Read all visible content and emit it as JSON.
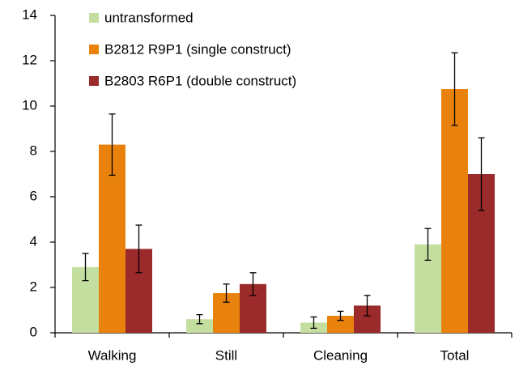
{
  "chart_data": {
    "type": "bar",
    "categories": [
      "Walking",
      "Still",
      "Cleaning",
      "Total"
    ],
    "series": [
      {
        "name": "untransformed",
        "color": "#c4dea0",
        "values": [
          2.9,
          0.6,
          0.45,
          3.9
        ],
        "errors": [
          0.6,
          0.2,
          0.25,
          0.7
        ]
      },
      {
        "name": "B2812 R9P1 (single construct)",
        "color": "#e8820c",
        "values": [
          8.3,
          1.75,
          0.75,
          10.75
        ],
        "errors": [
          1.35,
          0.4,
          0.2,
          1.6
        ]
      },
      {
        "name": "B2803 R6P1 (double construct)",
        "color": "#9b2a2a",
        "values": [
          3.7,
          2.15,
          1.2,
          7.0
        ],
        "errors": [
          1.05,
          0.5,
          0.45,
          1.6
        ]
      }
    ],
    "ylim": [
      0,
      14
    ],
    "yticks": [
      0,
      2,
      4,
      6,
      8,
      10,
      12,
      14
    ],
    "grid": false,
    "legend": "top-left"
  }
}
